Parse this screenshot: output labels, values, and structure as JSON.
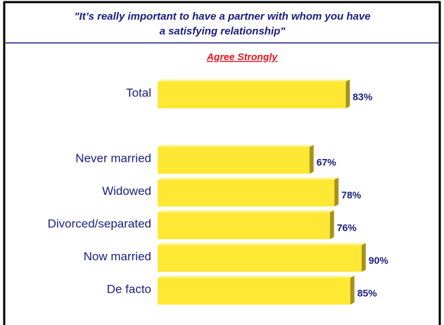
{
  "chart_data": {
    "type": "hbar",
    "title": [
      "\"It’s really important to have a partner with whom you have",
      "a satisfying relationship\""
    ],
    "subtitle": "Agree Strongly",
    "categories": [
      "Total",
      "Never married",
      "Widowed",
      "Divorced/separated",
      "Now married",
      "De facto"
    ],
    "values": [
      83,
      67,
      78,
      76,
      90,
      85
    ],
    "value_labels": [
      "83%",
      "67%",
      "78%",
      "76%",
      "90%",
      "85%"
    ],
    "color": "#ffe833",
    "xlim": [
      0,
      100
    ]
  }
}
